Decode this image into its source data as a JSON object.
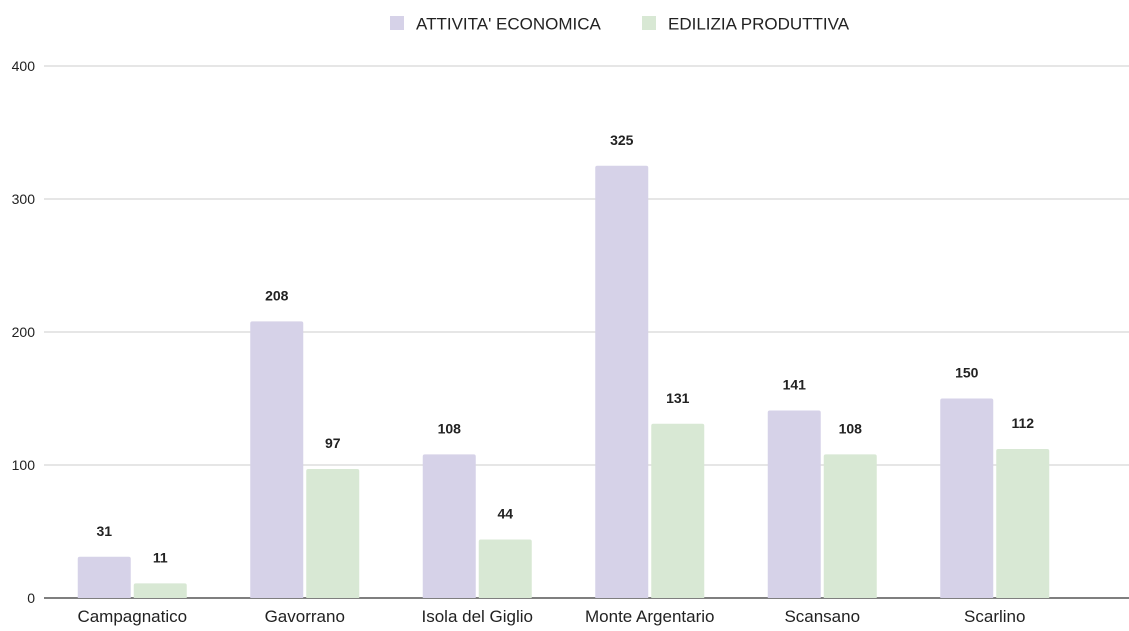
{
  "chart_data": {
    "type": "bar",
    "title": "",
    "xlabel": "",
    "ylabel": "",
    "categories": [
      "Campagnatico",
      "Gavorrano",
      "Isola del Giglio",
      "Monte Argentario",
      "Scansano",
      "Scarlino"
    ],
    "series": [
      {
        "name": "ATTIVITA' ECONOMICA",
        "color": "#d6d2e8",
        "values": [
          31,
          208,
          108,
          325,
          141,
          150
        ]
      },
      {
        "name": "EDILIZIA PRODUTTIVA",
        "color": "#d8e8d4",
        "values": [
          11,
          97,
          44,
          131,
          108,
          112
        ]
      }
    ],
    "ylim": [
      0,
      400
    ],
    "yticks": [
      0,
      100,
      200,
      300,
      400
    ],
    "grid": true,
    "legend_position": "top-center",
    "data_labels": true
  }
}
